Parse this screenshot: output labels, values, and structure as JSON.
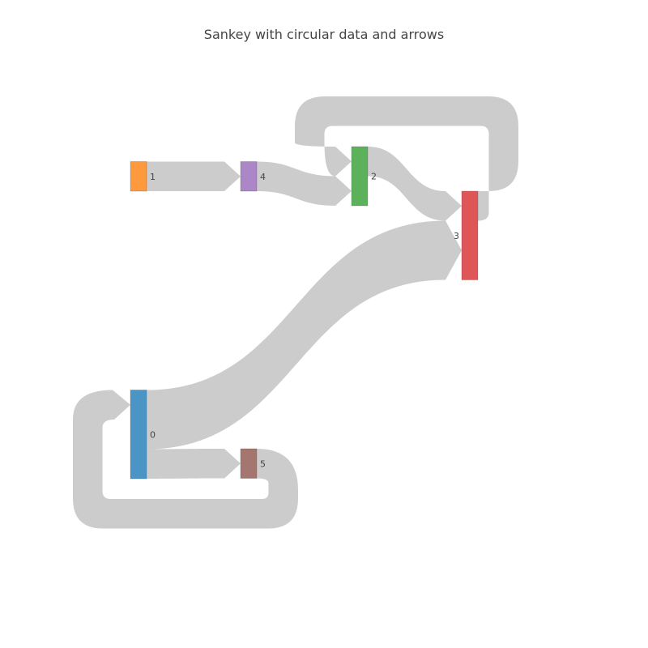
{
  "chart": {
    "title": "Sankey with circular data and arrows"
  },
  "chart_data": {
    "type": "sankey",
    "title": "Sankey with circular data and arrows",
    "arrows": true,
    "circular": true,
    "nodes": [
      {
        "id": 0,
        "label": "0",
        "color": "#4a94c6"
      },
      {
        "id": 1,
        "label": "1",
        "color": "#fd9a3e"
      },
      {
        "id": 2,
        "label": "2",
        "color": "#5bb25b"
      },
      {
        "id": 3,
        "label": "3",
        "color": "#df5657"
      },
      {
        "id": 4,
        "label": "4",
        "color": "#ac87c8"
      },
      {
        "id": 5,
        "label": "5",
        "color": "#a4766f"
      }
    ],
    "links": [
      {
        "source": 0,
        "target": 3,
        "value": 2,
        "color": "#cccccc"
      },
      {
        "source": 0,
        "target": 5,
        "value": 1,
        "color": "#cccccc"
      },
      {
        "source": 5,
        "target": 0,
        "value": 1,
        "color": "#cccccc"
      },
      {
        "source": 1,
        "target": 4,
        "value": 1,
        "color": "#cccccc"
      },
      {
        "source": 4,
        "target": 2,
        "value": 1,
        "color": "#cccccc"
      },
      {
        "source": 2,
        "target": 3,
        "value": 1,
        "color": "#cccccc"
      },
      {
        "source": 3,
        "target": 2,
        "value": 1,
        "color": "#cccccc"
      }
    ]
  }
}
